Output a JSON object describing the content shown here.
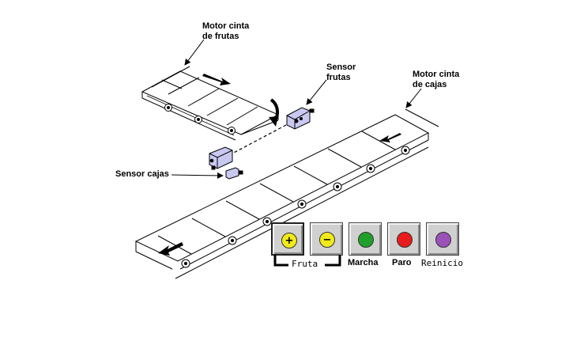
{
  "labels": {
    "motor_frutas": [
      "Motor cinta",
      "de frutas"
    ],
    "sensor_frutas": [
      "Sensor",
      "frutas"
    ],
    "motor_cajas": [
      "Motor cinta",
      "de cajas"
    ],
    "sensor_cajas": "Sensor cajas"
  },
  "panel": {
    "fruta_group_label": "Fruta",
    "buttons": [
      {
        "id": "fruta-plus",
        "symbol": "+",
        "color": "#f2ea1a",
        "label": ""
      },
      {
        "id": "fruta-minus",
        "symbol": "−",
        "color": "#f2ea1a",
        "label": ""
      },
      {
        "id": "marcha",
        "symbol": "",
        "color": "#1fa02a",
        "label": "Marcha"
      },
      {
        "id": "paro",
        "symbol": "",
        "color": "#e81c1c",
        "label": "Paro"
      },
      {
        "id": "reinicio",
        "symbol": "",
        "color": "#9a52b8",
        "label": "Reinicio"
      }
    ]
  },
  "colors": {
    "sensor_body": "#c8c8f0",
    "line": "#000000"
  }
}
